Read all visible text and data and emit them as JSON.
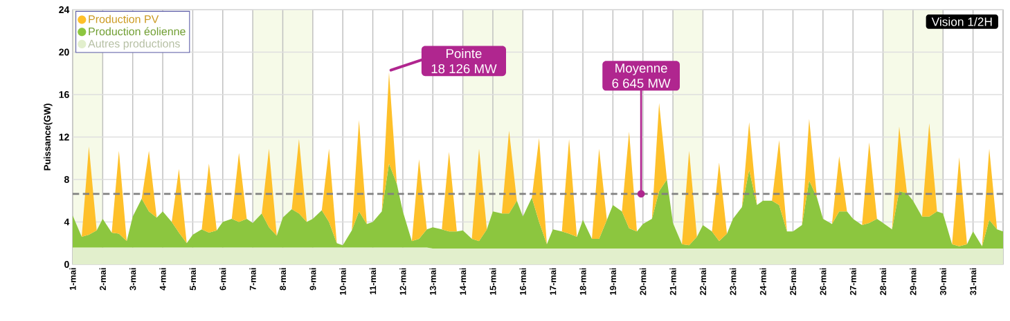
{
  "chart_data": {
    "type": "area",
    "stacked": true,
    "ylabel": "Puissance(GW)",
    "x": [
      1,
      1.3,
      1.54,
      1.8,
      2,
      2.3,
      2.54,
      2.8,
      3,
      3.3,
      3.54,
      3.8,
      4,
      4.3,
      4.54,
      4.8,
      5,
      5.3,
      5.54,
      5.8,
      6,
      6.3,
      6.54,
      6.8,
      7,
      7.3,
      7.54,
      7.8,
      8,
      8.3,
      8.54,
      8.8,
      9,
      9.3,
      9.54,
      9.8,
      10,
      10.3,
      10.54,
      10.8,
      11,
      11.3,
      11.54,
      11.8,
      12,
      12.3,
      12.54,
      12.8,
      13,
      13.3,
      13.54,
      13.8,
      14,
      14.3,
      14.54,
      14.8,
      15,
      15.3,
      15.54,
      15.8,
      16,
      16.3,
      16.54,
      16.8,
      17,
      17.3,
      17.54,
      17.8,
      18,
      18.3,
      18.54,
      18.8,
      19,
      19.3,
      19.54,
      19.8,
      20,
      20.3,
      20.54,
      20.8,
      21,
      21.3,
      21.54,
      21.8,
      22,
      22.3,
      22.54,
      22.8,
      23,
      23.3,
      23.54,
      23.8,
      24,
      24.3,
      24.54,
      24.8,
      25,
      25.3,
      25.54,
      25.8,
      26,
      26.3,
      26.54,
      26.8,
      27,
      27.3,
      27.54,
      27.8,
      28,
      28.3,
      28.54,
      28.8,
      29,
      29.3,
      29.54,
      29.8,
      30,
      30.3,
      30.54,
      30.8,
      31,
      31.3,
      31.54,
      31.8,
      32
    ],
    "series": [
      {
        "name": "Autres productions",
        "color": "#e2efcc",
        "values": [
          1.6,
          1.6,
          1.6,
          1.6,
          1.6,
          1.6,
          1.6,
          1.6,
          1.6,
          1.6,
          1.6,
          1.6,
          1.6,
          1.6,
          1.6,
          1.6,
          1.6,
          1.6,
          1.6,
          1.6,
          1.6,
          1.6,
          1.6,
          1.6,
          1.6,
          1.6,
          1.6,
          1.6,
          1.6,
          1.6,
          1.6,
          1.6,
          1.6,
          1.6,
          1.6,
          1.6,
          1.6,
          1.6,
          1.6,
          1.6,
          1.6,
          1.6,
          1.6,
          1.6,
          1.6,
          1.6,
          1.6,
          1.6,
          1.5,
          1.5,
          1.5,
          1.5,
          1.5,
          1.5,
          1.5,
          1.5,
          1.5,
          1.5,
          1.5,
          1.5,
          1.5,
          1.5,
          1.5,
          1.5,
          1.5,
          1.5,
          1.5,
          1.5,
          1.5,
          1.5,
          1.5,
          1.5,
          1.5,
          1.5,
          1.5,
          1.5,
          1.5,
          1.5,
          1.5,
          1.5,
          1.5,
          1.5,
          1.5,
          1.5,
          1.5,
          1.5,
          1.5,
          1.5,
          1.5,
          1.5,
          1.5,
          1.5,
          1.5,
          1.5,
          1.5,
          1.5,
          1.5,
          1.5,
          1.5,
          1.5,
          1.5,
          1.5,
          1.5,
          1.5,
          1.5,
          1.5,
          1.5,
          1.5,
          1.5,
          1.5,
          1.5,
          1.5,
          1.5,
          1.5,
          1.5,
          1.5,
          1.5,
          1.5,
          1.5,
          1.5,
          1.5,
          1.5,
          1.5,
          1.5,
          1.5
        ]
      },
      {
        "name": "Production éolienne",
        "color": "#8cc63f",
        "values": [
          3.0,
          1.0,
          1.2,
          1.6,
          2.7,
          1.4,
          1.3,
          0.6,
          2.9,
          4.6,
          3.4,
          2.8,
          3.4,
          2.4,
          1.4,
          0.4,
          1.2,
          1.7,
          1.4,
          1.6,
          2.4,
          2.7,
          2.4,
          2.7,
          2.3,
          3.2,
          1.9,
          1.1,
          2.8,
          3.6,
          3.2,
          2.4,
          2.7,
          3.5,
          2.4,
          0.4,
          0.2,
          1.6,
          3.4,
          2.2,
          2.4,
          3.4,
          7.9,
          6.0,
          3.4,
          0.6,
          0.8,
          1.7,
          2.0,
          1.8,
          1.6,
          1.6,
          1.7,
          0.9,
          0.7,
          1.8,
          3.5,
          3.3,
          3.3,
          4.5,
          3.0,
          4.8,
          2.5,
          0.4,
          1.8,
          1.6,
          1.4,
          1.1,
          2.7,
          0.9,
          0.9,
          2.7,
          4.1,
          3.5,
          1.9,
          1.6,
          2.3,
          2.8,
          5.4,
          6.5,
          2.4,
          0.4,
          0.3,
          1.1,
          2.2,
          1.6,
          0.7,
          1.4,
          2.8,
          3.9,
          7.4,
          4.1,
          4.5,
          4.5,
          4.1,
          1.6,
          1.6,
          2.2,
          6.4,
          4.8,
          2.8,
          2.3,
          3.5,
          3.5,
          2.8,
          2.2,
          2.4,
          2.8,
          2.4,
          1.8,
          5.4,
          5.2,
          4.5,
          3.0,
          3.0,
          3.5,
          3.3,
          0.4,
          0.2,
          0.4,
          1.6,
          0.2,
          2.7,
          1.8,
          1.6
        ]
      },
      {
        "name": "Production PV",
        "color": "#fec02a",
        "values": [
          0,
          0,
          8.3,
          0,
          0,
          0,
          7.8,
          0,
          0,
          0,
          5.7,
          0,
          0,
          0,
          6.0,
          0,
          0,
          0,
          6.5,
          0,
          0,
          0,
          6.5,
          0,
          0,
          0,
          7.4,
          0,
          0,
          0,
          7.0,
          0,
          0,
          0,
          6.9,
          0,
          0,
          0,
          8.6,
          0,
          0,
          0,
          8.6,
          0,
          0,
          0,
          7.5,
          0,
          0,
          0,
          7.5,
          0,
          0,
          0,
          8.7,
          0,
          0,
          0,
          7.8,
          0,
          0,
          0,
          7.9,
          0,
          0,
          0,
          8.9,
          0,
          0,
          0,
          8.5,
          0,
          0,
          0,
          9.1,
          0,
          0,
          0,
          8.3,
          0,
          0,
          0,
          8.9,
          0,
          0,
          0,
          7.4,
          0,
          0,
          0,
          4.5,
          0,
          0,
          0,
          6.1,
          0,
          0,
          0,
          5.8,
          0,
          0,
          0,
          5.2,
          0,
          0,
          0,
          7.6,
          0,
          0,
          0,
          6.1,
          0,
          0,
          0,
          8.8,
          0,
          0,
          0,
          8.4,
          0,
          0,
          0,
          6.7,
          0,
          0
        ]
      }
    ],
    "xlim": [
      1,
      32
    ],
    "xticks": [
      {
        "value": 1,
        "label": "1-mai"
      },
      {
        "value": 2,
        "label": "2-mai"
      },
      {
        "value": 3,
        "label": "3-mai"
      },
      {
        "value": 4,
        "label": "4-mai"
      },
      {
        "value": 5,
        "label": "5-mai"
      },
      {
        "value": 6,
        "label": "6-mai"
      },
      {
        "value": 7,
        "label": "7-mai"
      },
      {
        "value": 8,
        "label": "8-mai"
      },
      {
        "value": 9,
        "label": "9-mai"
      },
      {
        "value": 10,
        "label": "10-mai"
      },
      {
        "value": 11,
        "label": "11-mai"
      },
      {
        "value": 12,
        "label": "12-mai"
      },
      {
        "value": 13,
        "label": "13-mai"
      },
      {
        "value": 14,
        "label": "14-mai"
      },
      {
        "value": 15,
        "label": "15-mai"
      },
      {
        "value": 16,
        "label": "16-mai"
      },
      {
        "value": 17,
        "label": "17-mai"
      },
      {
        "value": 18,
        "label": "18-mai"
      },
      {
        "value": 19,
        "label": "19-mai"
      },
      {
        "value": 20,
        "label": "20-mai"
      },
      {
        "value": 21,
        "label": "21-mai"
      },
      {
        "value": 22,
        "label": "22-mai"
      },
      {
        "value": 23,
        "label": "23-mai"
      },
      {
        "value": 24,
        "label": "24-mai"
      },
      {
        "value": 25,
        "label": "25-mai"
      },
      {
        "value": 26,
        "label": "26-mai"
      },
      {
        "value": 27,
        "label": "27-mai"
      },
      {
        "value": 28,
        "label": "28-mai"
      },
      {
        "value": 29,
        "label": "29-mai"
      },
      {
        "value": 30,
        "label": "30-mai"
      },
      {
        "value": 31,
        "label": "31-mai"
      },
      {
        "value": 32,
        "label": null
      }
    ],
    "ylim": [
      0,
      24
    ],
    "yticks": [
      0,
      4,
      8,
      12,
      16,
      20,
      24
    ],
    "grid": true,
    "legend": "top left",
    "ref_lines": [
      {
        "axis": "y",
        "value": 6.645,
        "label": "Moyenne",
        "color": "#808080",
        "line_style": "dashed"
      }
    ],
    "bands": [
      {
        "axis": "x",
        "from": 1,
        "to": 2,
        "color": "#f6fae8"
      },
      {
        "axis": "x",
        "from": 7,
        "to": 9,
        "color": "#f6fae8"
      },
      {
        "axis": "x",
        "from": 14,
        "to": 16,
        "color": "#f6fae8"
      },
      {
        "axis": "x",
        "from": 21,
        "to": 22,
        "color": "#f6fae8"
      },
      {
        "axis": "x",
        "from": 28,
        "to": 30,
        "color": "#f6fae8"
      }
    ],
    "annotations": [
      "Vision 1/2H",
      "Pointe",
      {
        "text": "18 126 MW",
        "x": 11.54,
        "y": 18.126
      },
      {
        "text": "6 645 MW",
        "x": 19.94,
        "y": 6.645
      }
    ]
  }
}
